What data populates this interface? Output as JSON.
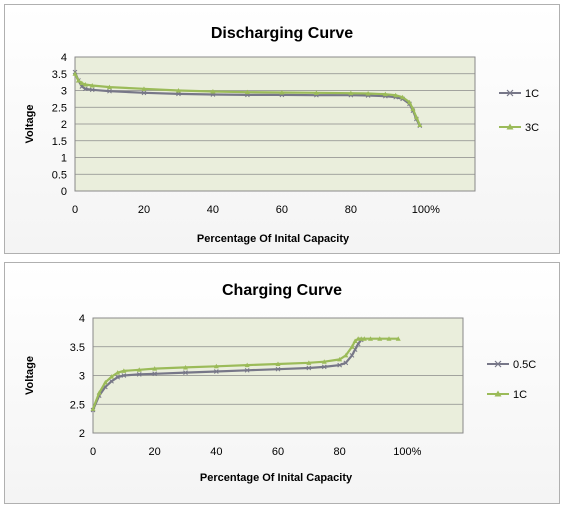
{
  "chart_data": [
    {
      "type": "line",
      "title": "Discharging Curve",
      "xlabel": "Percentage Of Inital Capacity",
      "ylabel": "Voltage",
      "xlim": [
        0,
        100
      ],
      "ylim": [
        0,
        4
      ],
      "x_ticks": [
        0,
        20,
        40,
        60,
        80,
        100
      ],
      "x_tick_labels": [
        "0",
        "20",
        "40",
        "60",
        "80",
        "100%"
      ],
      "y_ticks": [
        0,
        0.5,
        1,
        1.5,
        2,
        2.5,
        3,
        3.5,
        4
      ],
      "y_tick_labels": [
        "0",
        "0.5",
        "1",
        "1.5",
        "2",
        "2.5",
        "3",
        "3.5",
        "4"
      ],
      "grid": "horizontal",
      "legend_position": "right",
      "series": [
        {
          "name": "1C",
          "color": "#777788",
          "x": [
            0,
            1,
            2,
            3,
            5,
            10,
            20,
            30,
            40,
            50,
            60,
            70,
            80,
            85,
            90,
            93,
            95,
            97,
            98,
            99,
            100
          ],
          "y": [
            3.55,
            3.3,
            3.12,
            3.05,
            3.02,
            2.98,
            2.93,
            2.9,
            2.88,
            2.87,
            2.87,
            2.86,
            2.86,
            2.85,
            2.83,
            2.8,
            2.75,
            2.6,
            2.4,
            2.15,
            1.95
          ]
        },
        {
          "name": "3C",
          "color": "#9bbb59",
          "x": [
            0,
            1,
            2,
            3,
            5,
            10,
            20,
            30,
            40,
            50,
            60,
            70,
            80,
            85,
            90,
            93,
            95,
            97,
            98,
            99,
            100
          ],
          "y": [
            3.5,
            3.3,
            3.22,
            3.18,
            3.15,
            3.1,
            3.05,
            3.0,
            2.97,
            2.95,
            2.94,
            2.93,
            2.92,
            2.91,
            2.89,
            2.86,
            2.8,
            2.65,
            2.45,
            2.2,
            1.97
          ]
        }
      ]
    },
    {
      "type": "line",
      "title": "Charging  Curve",
      "xlabel": "Percentage Of Inital Capacity",
      "ylabel": "Voltage",
      "xlim": [
        0,
        100
      ],
      "ylim": [
        2,
        4
      ],
      "x_ticks": [
        0,
        20,
        40,
        60,
        80,
        100
      ],
      "x_tick_labels": [
        "0",
        "20",
        "40",
        "60",
        "80",
        "100%"
      ],
      "y_ticks": [
        2,
        2.5,
        3,
        3.5,
        4
      ],
      "y_tick_labels": [
        "2",
        "2.5",
        "3",
        "3.5",
        "4"
      ],
      "grid": "horizontal",
      "legend_position": "right",
      "series": [
        {
          "name": "0.5C",
          "color": "#777788",
          "x": [
            0,
            2,
            4,
            6,
            8,
            10,
            15,
            20,
            30,
            40,
            50,
            60,
            70,
            75,
            80,
            82,
            84,
            85,
            86,
            87
          ],
          "y": [
            2.4,
            2.65,
            2.8,
            2.9,
            2.97,
            3.0,
            3.02,
            3.03,
            3.05,
            3.07,
            3.09,
            3.11,
            3.13,
            3.15,
            3.18,
            3.22,
            3.35,
            3.45,
            3.55,
            3.62
          ]
        },
        {
          "name": "1C",
          "color": "#9bbb59",
          "x": [
            0,
            2,
            4,
            6,
            8,
            10,
            15,
            20,
            30,
            40,
            50,
            60,
            70,
            75,
            80,
            82,
            84,
            85,
            86,
            87,
            88,
            90,
            93,
            96,
            99
          ],
          "y": [
            2.42,
            2.7,
            2.88,
            2.98,
            3.05,
            3.08,
            3.1,
            3.12,
            3.14,
            3.16,
            3.18,
            3.2,
            3.22,
            3.24,
            3.28,
            3.35,
            3.5,
            3.6,
            3.64,
            3.64,
            3.64,
            3.64,
            3.64,
            3.64,
            3.64
          ]
        }
      ]
    }
  ]
}
